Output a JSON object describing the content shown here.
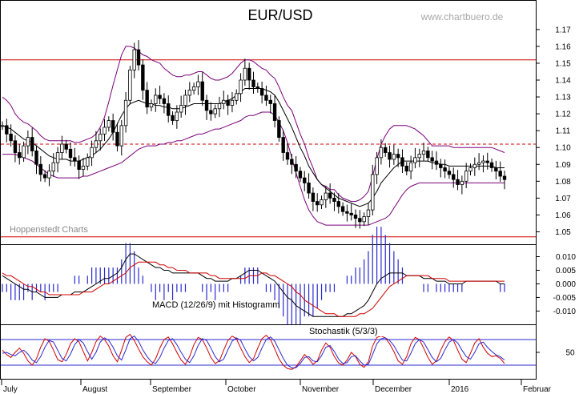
{
  "chart_data": {
    "type": "candlestick",
    "title": "EUR/USD",
    "watermark": "www.chartbuero.de",
    "source_label": "Hoppenstedt Charts",
    "main_panel": {
      "ylim": [
        1.045,
        1.178
      ],
      "yticks": [
        "1.05",
        "1.06",
        "1.07",
        "1.08",
        "1.09",
        "1.10",
        "1.11",
        "1.12",
        "1.13",
        "1.14",
        "1.15",
        "1.16",
        "1.17"
      ],
      "horizontal_lines": [
        {
          "value": 1.152,
          "style": "solid",
          "color": "#d00000"
        },
        {
          "value": 1.102,
          "style": "dashed",
          "color": "#d00000"
        },
        {
          "value": 1.047,
          "style": "solid",
          "color": "#d00000"
        }
      ],
      "series": [
        {
          "name": "Close",
          "values": [
            1.113,
            1.108,
            1.104,
            1.097,
            1.094,
            1.101,
            1.106,
            1.098,
            1.09,
            1.084,
            1.082,
            1.086,
            1.091,
            1.097,
            1.102,
            1.099,
            1.094,
            1.092,
            1.087,
            1.089,
            1.094,
            1.1,
            1.104,
            1.108,
            1.112,
            1.116,
            1.109,
            1.101,
            1.113,
            1.128,
            1.146,
            1.158,
            1.149,
            1.134,
            1.124,
            1.126,
            1.131,
            1.129,
            1.126,
            1.119,
            1.116,
            1.121,
            1.125,
            1.131,
            1.134,
            1.136,
            1.139,
            1.128,
            1.122,
            1.12,
            1.123,
            1.126,
            1.128,
            1.125,
            1.128,
            1.132,
            1.14,
            1.147,
            1.14,
            1.136,
            1.135,
            1.131,
            1.128,
            1.126,
            1.116,
            1.106,
            1.097,
            1.093,
            1.09,
            1.086,
            1.082,
            1.079,
            1.073,
            1.068,
            1.066,
            1.069,
            1.073,
            1.07,
            1.068,
            1.065,
            1.062,
            1.061,
            1.06,
            1.058,
            1.056,
            1.059,
            1.063,
            1.084,
            1.094,
            1.1,
            1.097,
            1.093,
            1.096,
            1.094,
            1.089,
            1.086,
            1.091,
            1.094,
            1.096,
            1.098,
            1.094,
            1.092,
            1.09,
            1.088,
            1.086,
            1.084,
            1.081,
            1.078,
            1.08,
            1.086,
            1.088,
            1.09,
            1.091,
            1.092,
            1.091,
            1.088,
            1.086,
            1.083,
            1.081
          ]
        },
        {
          "name": "Bollinger upper",
          "values": [
            1.13,
            1.128,
            1.125,
            1.12,
            1.117,
            1.115,
            1.114,
            1.112,
            1.11,
            1.107,
            1.105,
            1.104,
            1.104,
            1.104,
            1.104,
            1.104,
            1.104,
            1.103,
            1.103,
            1.104,
            1.105,
            1.106,
            1.108,
            1.112,
            1.118,
            1.127,
            1.137,
            1.146,
            1.155,
            1.16,
            1.16,
            1.159,
            1.157,
            1.155,
            1.154,
            1.152,
            1.151,
            1.15,
            1.147,
            1.145,
            1.143,
            1.142,
            1.142,
            1.143,
            1.143,
            1.144,
            1.145,
            1.145,
            1.143,
            1.141,
            1.14,
            1.14,
            1.141,
            1.142,
            1.144,
            1.147,
            1.15,
            1.152,
            1.152,
            1.151,
            1.149,
            1.147,
            1.146,
            1.143,
            1.141,
            1.136,
            1.13,
            1.125,
            1.122,
            1.115,
            1.108,
            1.102,
            1.094,
            1.088,
            1.081,
            1.078,
            1.077,
            1.075,
            1.075,
            1.072,
            1.07,
            1.069,
            1.068,
            1.068,
            1.069,
            1.071,
            1.074,
            1.083,
            1.093,
            1.102,
            1.107,
            1.111,
            1.113,
            1.113,
            1.113,
            1.113,
            1.112,
            1.111,
            1.109,
            1.107,
            1.104,
            1.101,
            1.101,
            1.101,
            1.101,
            1.101,
            1.1,
            1.1,
            1.1,
            1.1,
            1.1,
            1.1,
            1.1,
            1.1,
            1.1,
            1.1,
            1.099,
            1.098,
            1.097
          ]
        },
        {
          "name": "Bollinger middle",
          "values": [
            1.113,
            1.112,
            1.111,
            1.109,
            1.107,
            1.105,
            1.104,
            1.103,
            1.101,
            1.099,
            1.097,
            1.095,
            1.094,
            1.093,
            1.093,
            1.093,
            1.092,
            1.092,
            1.092,
            1.093,
            1.094,
            1.095,
            1.097,
            1.099,
            1.102,
            1.105,
            1.109,
            1.114,
            1.119,
            1.123,
            1.126,
            1.127,
            1.128,
            1.127,
            1.126,
            1.126,
            1.125,
            1.125,
            1.124,
            1.124,
            1.123,
            1.123,
            1.123,
            1.124,
            1.125,
            1.126,
            1.126,
            1.126,
            1.126,
            1.126,
            1.126,
            1.126,
            1.127,
            1.128,
            1.129,
            1.131,
            1.133,
            1.135,
            1.135,
            1.135,
            1.135,
            1.135,
            1.134,
            1.133,
            1.131,
            1.127,
            1.122,
            1.117,
            1.112,
            1.106,
            1.1,
            1.095,
            1.089,
            1.085,
            1.081,
            1.078,
            1.076,
            1.074,
            1.072,
            1.07,
            1.069,
            1.068,
            1.067,
            1.066,
            1.065,
            1.066,
            1.067,
            1.07,
            1.074,
            1.079,
            1.082,
            1.085,
            1.088,
            1.09,
            1.092,
            1.092,
            1.092,
            1.092,
            1.092,
            1.092,
            1.092,
            1.091,
            1.091,
            1.09,
            1.09,
            1.089,
            1.089,
            1.089,
            1.089,
            1.089,
            1.089,
            1.089,
            1.089,
            1.089,
            1.089,
            1.089,
            1.088,
            1.088,
            1.088
          ]
        },
        {
          "name": "Bollinger lower",
          "values": [
            1.096,
            1.096,
            1.096,
            1.096,
            1.095,
            1.094,
            1.093,
            1.092,
            1.09,
            1.088,
            1.086,
            1.084,
            1.083,
            1.082,
            1.082,
            1.082,
            1.082,
            1.082,
            1.082,
            1.083,
            1.083,
            1.084,
            1.085,
            1.086,
            1.087,
            1.088,
            1.089,
            1.09,
            1.091,
            1.093,
            1.095,
            1.097,
            1.099,
            1.1,
            1.101,
            1.101,
            1.101,
            1.102,
            1.102,
            1.103,
            1.103,
            1.104,
            1.104,
            1.105,
            1.106,
            1.107,
            1.108,
            1.108,
            1.109,
            1.11,
            1.111,
            1.111,
            1.112,
            1.113,
            1.114,
            1.115,
            1.116,
            1.118,
            1.119,
            1.119,
            1.12,
            1.121,
            1.121,
            1.121,
            1.119,
            1.115,
            1.11,
            1.103,
            1.094,
            1.085,
            1.077,
            1.069,
            1.063,
            1.059,
            1.056,
            1.055,
            1.054,
            1.054,
            1.054,
            1.054,
            1.054,
            1.054,
            1.054,
            1.054,
            1.054,
            1.054,
            1.054,
            1.055,
            1.056,
            1.057,
            1.058,
            1.06,
            1.064,
            1.068,
            1.072,
            1.075,
            1.077,
            1.078,
            1.079,
            1.079,
            1.079,
            1.079,
            1.079,
            1.079,
            1.079,
            1.079,
            1.079,
            1.079,
            1.079,
            1.079,
            1.079,
            1.079,
            1.079,
            1.079,
            1.079,
            1.079,
            1.079,
            1.079,
            1.079
          ]
        }
      ]
    },
    "macd_panel": {
      "label": "MACD (12/26/9) mit Histogramm",
      "ylim": [
        -0.014,
        0.0125
      ],
      "yticks": [
        "0.010",
        "0.005",
        "0.000",
        "-0.005",
        "-0.010"
      ],
      "series": [
        {
          "name": "MACD",
          "values": [
            0.003,
            0.002,
            0.001,
            0.0,
            -0.001,
            -0.002,
            -0.002,
            -0.003,
            -0.003,
            -0.004,
            -0.005,
            -0.005,
            -0.005,
            -0.005,
            -0.004,
            -0.004,
            -0.004,
            -0.003,
            -0.003,
            -0.003,
            -0.002,
            -0.001,
            0.0,
            0.001,
            0.002,
            0.002,
            0.003,
            0.004,
            0.006,
            0.009,
            0.011,
            0.011,
            0.01,
            0.009,
            0.008,
            0.007,
            0.006,
            0.006,
            0.005,
            0.005,
            0.004,
            0.004,
            0.004,
            0.004,
            0.004,
            0.004,
            0.004,
            0.003,
            0.002,
            0.002,
            0.001,
            0.001,
            0.001,
            0.001,
            0.002,
            0.002,
            0.003,
            0.004,
            0.005,
            0.005,
            0.005,
            0.004,
            0.003,
            0.002,
            0.001,
            -0.001,
            -0.003,
            -0.005,
            -0.006,
            -0.008,
            -0.009,
            -0.01,
            -0.011,
            -0.012,
            -0.012,
            -0.012,
            -0.012,
            -0.012,
            -0.012,
            -0.012,
            -0.012,
            -0.011,
            -0.011,
            -0.01,
            -0.009,
            -0.008,
            -0.006,
            -0.003,
            0.0,
            0.002,
            0.003,
            0.004,
            0.004,
            0.004,
            0.004,
            0.003,
            0.003,
            0.003,
            0.003,
            0.002,
            0.002,
            0.002,
            0.001,
            0.001,
            0.001,
            0.0,
            0.0,
            0.0,
            0.0,
            0.001,
            0.001,
            0.001,
            0.001,
            0.001,
            0.001,
            0.001,
            0.001,
            0.0,
            0.0
          ]
        },
        {
          "name": "Signal",
          "values": [
            0.004,
            0.003,
            0.003,
            0.002,
            0.001,
            0.0,
            -0.001,
            -0.001,
            -0.002,
            -0.003,
            -0.003,
            -0.004,
            -0.004,
            -0.004,
            -0.004,
            -0.004,
            -0.004,
            -0.004,
            -0.004,
            -0.003,
            -0.003,
            -0.003,
            -0.002,
            -0.001,
            0.0,
            0.0,
            0.001,
            0.002,
            0.003,
            0.004,
            0.006,
            0.007,
            0.008,
            0.008,
            0.008,
            0.008,
            0.008,
            0.007,
            0.007,
            0.006,
            0.006,
            0.005,
            0.005,
            0.005,
            0.004,
            0.004,
            0.004,
            0.004,
            0.004,
            0.003,
            0.003,
            0.002,
            0.002,
            0.002,
            0.002,
            0.002,
            0.002,
            0.002,
            0.003,
            0.003,
            0.003,
            0.004,
            0.004,
            0.003,
            0.003,
            0.002,
            0.001,
            0.0,
            -0.001,
            -0.003,
            -0.004,
            -0.006,
            -0.007,
            -0.008,
            -0.009,
            -0.01,
            -0.011,
            -0.011,
            -0.011,
            -0.012,
            -0.012,
            -0.012,
            -0.012,
            -0.012,
            -0.011,
            -0.011,
            -0.01,
            -0.009,
            -0.007,
            -0.005,
            -0.003,
            -0.001,
            0.0,
            0.001,
            0.002,
            0.003,
            0.003,
            0.003,
            0.003,
            0.003,
            0.003,
            0.002,
            0.002,
            0.002,
            0.002,
            0.001,
            0.001,
            0.001,
            0.001,
            0.001,
            0.001,
            0.001,
            0.001,
            0.001,
            0.001,
            0.001,
            0.001,
            0.001,
            0.001
          ]
        }
      ]
    },
    "stoch_panel": {
      "label": "Stochastik (5/3/3)",
      "ylim": [
        -10,
        110
      ],
      "yticks": [
        "50"
      ],
      "reference_lines": [
        80,
        20
      ],
      "series": [
        {
          "name": "%K",
          "values": [
            55,
            45,
            38,
            50,
            60,
            48,
            30,
            20,
            35,
            62,
            82,
            76,
            55,
            33,
            28,
            45,
            70,
            82,
            75,
            52,
            30,
            50,
            75,
            88,
            80,
            65,
            42,
            28,
            55,
            85,
            92,
            78,
            58,
            40,
            28,
            20,
            35,
            60,
            80,
            86,
            70,
            50,
            32,
            22,
            40,
            68,
            85,
            80,
            60,
            38,
            24,
            30,
            55,
            78,
            88,
            82,
            60,
            40,
            26,
            35,
            60,
            82,
            90,
            80,
            58,
            35,
            20,
            12,
            10,
            16,
            30,
            45,
            35,
            22,
            30,
            55,
            72,
            62,
            40,
            25,
            20,
            32,
            50,
            40,
            22,
            15,
            28,
            65,
            85,
            88,
            84,
            70,
            52,
            30,
            22,
            40,
            70,
            85,
            80,
            60,
            38,
            22,
            30,
            55,
            75,
            86,
            78,
            55,
            34,
            26,
            48,
            72,
            82,
            62,
            48,
            40,
            42,
            36,
            24
          ]
        },
        {
          "name": "%D",
          "values": [
            48,
            50,
            45,
            42,
            50,
            55,
            46,
            32,
            26,
            40,
            62,
            78,
            74,
            55,
            36,
            30,
            46,
            68,
            80,
            72,
            52,
            34,
            50,
            74,
            84,
            78,
            62,
            42,
            32,
            56,
            82,
            88,
            76,
            56,
            40,
            28,
            24,
            38,
            60,
            78,
            82,
            68,
            50,
            34,
            26,
            42,
            66,
            82,
            78,
            60,
            40,
            28,
            34,
            56,
            76,
            84,
            78,
            58,
            40,
            30,
            38,
            60,
            80,
            86,
            76,
            56,
            36,
            20,
            14,
            14,
            24,
            38,
            40,
            30,
            28,
            42,
            62,
            66,
            52,
            34,
            24,
            26,
            40,
            42,
            30,
            20,
            22,
            45,
            70,
            82,
            84,
            78,
            66,
            48,
            32,
            30,
            48,
            70,
            80,
            74,
            56,
            38,
            28,
            36,
            56,
            74,
            80,
            72,
            55,
            40,
            34,
            50,
            70,
            74,
            62,
            52,
            44,
            40,
            32
          ]
        }
      ]
    },
    "x_axis": {
      "labels": [
        "July",
        "August",
        "September",
        "October",
        "November",
        "December",
        "2016",
        "Februar"
      ]
    }
  }
}
